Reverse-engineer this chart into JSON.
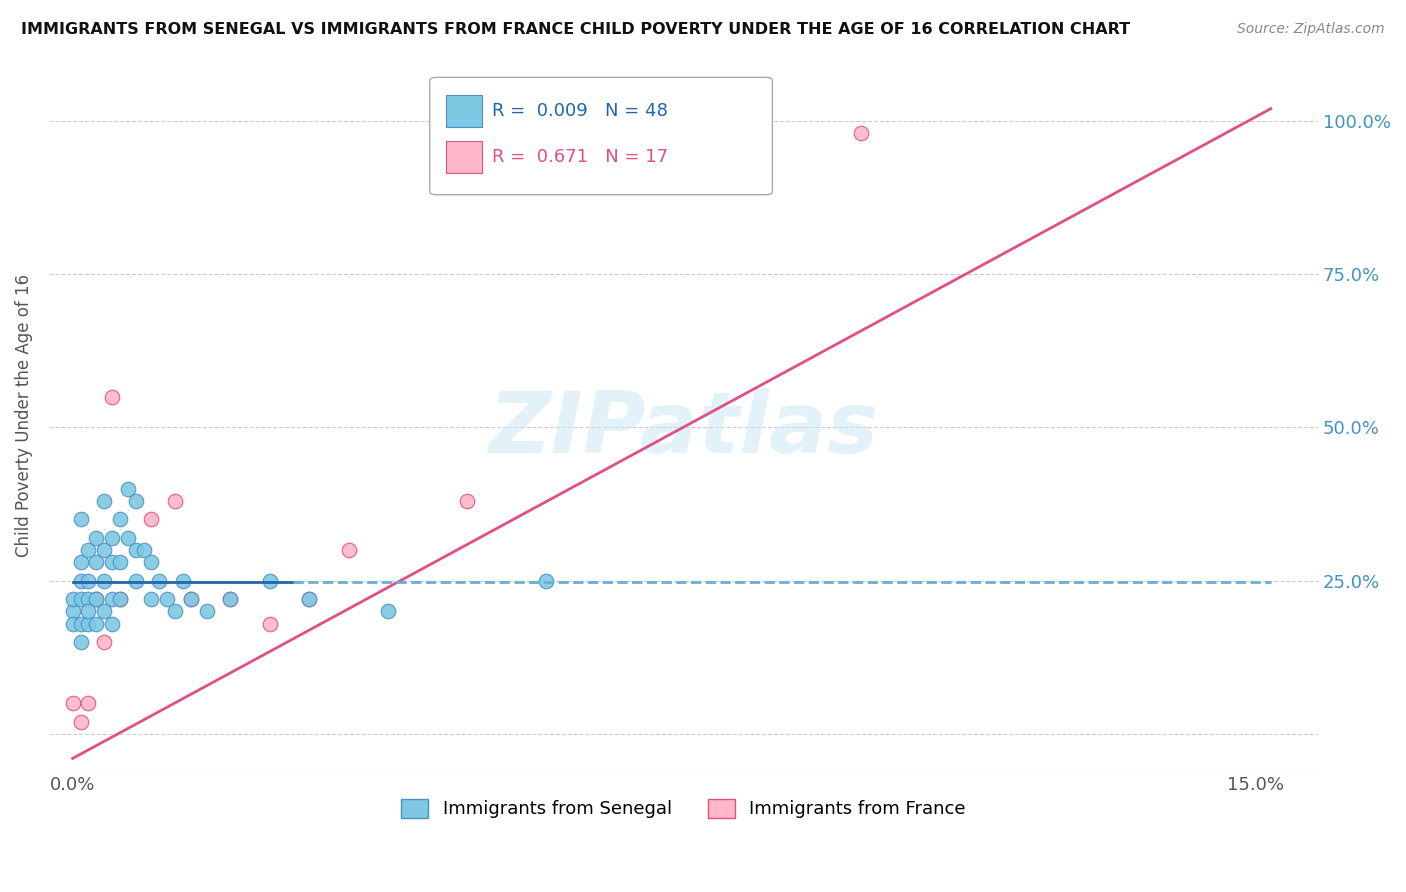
{
  "title": "IMMIGRANTS FROM SENEGAL VS IMMIGRANTS FROM FRANCE CHILD POVERTY UNDER THE AGE OF 16 CORRELATION CHART",
  "source": "Source: ZipAtlas.com",
  "ylabel": "Child Poverty Under the Age of 16",
  "watermark": "ZIPatlas",
  "legend_senegal": "Immigrants from Senegal",
  "legend_france": "Immigrants from France",
  "R_senegal": 0.009,
  "N_senegal": 48,
  "R_france": 0.671,
  "N_france": 17,
  "color_senegal": "#7ec8e3",
  "color_france": "#ffb6c8",
  "line_senegal_solid": "#2166ac",
  "line_senegal_dashed": "#6baed6",
  "line_france": "#e05080",
  "xmin": -0.003,
  "xmax": 0.158,
  "ymin": -0.06,
  "ymax": 1.1,
  "x_ticks": [
    0.0,
    0.15
  ],
  "x_tick_labels": [
    "0.0%",
    "15.0%"
  ],
  "y_ticks": [
    0.0,
    0.25,
    0.5,
    0.75,
    1.0
  ],
  "y_tick_labels": [
    "",
    "25.0%",
    "50.0%",
    "75.0%",
    "100.0%"
  ],
  "senegal_x": [
    0.0,
    0.0,
    0.0,
    0.001,
    0.001,
    0.001,
    0.001,
    0.001,
    0.001,
    0.002,
    0.002,
    0.002,
    0.002,
    0.002,
    0.003,
    0.003,
    0.003,
    0.003,
    0.004,
    0.004,
    0.004,
    0.004,
    0.005,
    0.005,
    0.005,
    0.005,
    0.006,
    0.006,
    0.006,
    0.007,
    0.007,
    0.008,
    0.008,
    0.008,
    0.009,
    0.01,
    0.01,
    0.011,
    0.012,
    0.013,
    0.014,
    0.015,
    0.017,
    0.02,
    0.025,
    0.03,
    0.04,
    0.06
  ],
  "senegal_y": [
    0.2,
    0.22,
    0.18,
    0.35,
    0.28,
    0.22,
    0.18,
    0.15,
    0.25,
    0.3,
    0.22,
    0.18,
    0.25,
    0.2,
    0.32,
    0.28,
    0.22,
    0.18,
    0.38,
    0.3,
    0.25,
    0.2,
    0.32,
    0.28,
    0.22,
    0.18,
    0.35,
    0.28,
    0.22,
    0.4,
    0.32,
    0.38,
    0.3,
    0.25,
    0.3,
    0.28,
    0.22,
    0.25,
    0.22,
    0.2,
    0.25,
    0.22,
    0.2,
    0.22,
    0.25,
    0.22,
    0.2,
    0.25
  ],
  "france_x": [
    0.0,
    0.001,
    0.002,
    0.003,
    0.004,
    0.005,
    0.006,
    0.01,
    0.013,
    0.015,
    0.02,
    0.025,
    0.03,
    0.035,
    0.05,
    0.07,
    0.1
  ],
  "france_y": [
    0.05,
    0.02,
    0.05,
    0.22,
    0.15,
    0.55,
    0.22,
    0.35,
    0.38,
    0.22,
    0.22,
    0.18,
    0.22,
    0.3,
    0.38,
    0.92,
    0.98
  ],
  "france_line_x0": 0.0,
  "france_line_y0": -0.04,
  "france_line_x1": 0.152,
  "france_line_y1": 1.02,
  "senegal_line_solid_x0": 0.0,
  "senegal_line_solid_x1": 0.028,
  "senegal_line_y": 0.247,
  "senegal_line_dashed_x0": 0.028,
  "senegal_line_dashed_x1": 0.152
}
